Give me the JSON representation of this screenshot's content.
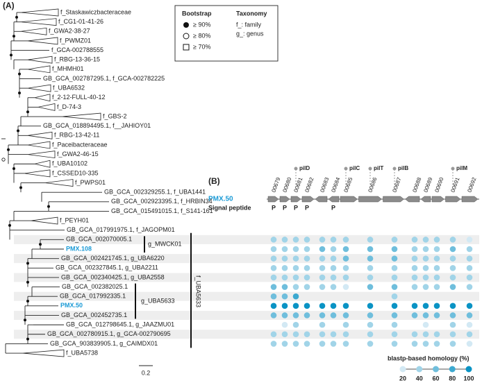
{
  "panel_a": {
    "label": "(A)",
    "taxa": [
      {
        "label": "f_Staskawiczbacteraceae",
        "collapsed": true
      },
      {
        "label": "f_CG1-01-41-26",
        "collapsed": true
      },
      {
        "label": "f_GWA2-38-27",
        "collapsed": true
      },
      {
        "label": "f_PWMZ01",
        "collapsed": true
      },
      {
        "label": "f_GCA-002788555",
        "collapsed": false
      },
      {
        "label": "f_RBG-13-36-15",
        "collapsed": true
      },
      {
        "label": "f_MHMH01",
        "collapsed": true
      },
      {
        "label": "GB_GCA_002787295.1, f_GCA-002782225",
        "collapsed": false
      },
      {
        "label": "f_UBA6532",
        "collapsed": true
      },
      {
        "label": "f_2-12-FULL-40-12",
        "collapsed": true
      },
      {
        "label": "f_D-74-3",
        "collapsed": true
      },
      {
        "label": "f_GBS-2",
        "collapsed": true
      },
      {
        "label": "GB_GCA_018894495.1, f__JAHIOY01",
        "collapsed": false
      },
      {
        "label": "f_RBG-13-42-11",
        "collapsed": true
      },
      {
        "label": "f_Paceibacteraceae",
        "collapsed": true
      },
      {
        "label": "f_GWA2-46-15",
        "collapsed": true
      },
      {
        "label": "f_UBA10102",
        "collapsed": true
      },
      {
        "label": "f_CSSED10-335",
        "collapsed": true
      },
      {
        "label": "f_PWPS01",
        "collapsed": true
      },
      {
        "label": "GB_GCA_002329255.1, f_UBA1441",
        "collapsed": false
      },
      {
        "label": "GB_GCA_002923395.1, f_HRBIN34",
        "collapsed": false
      },
      {
        "label": "GB_GCA_015491015.1, f_S141-161",
        "collapsed": false
      },
      {
        "label": "f_PEYH01",
        "collapsed": true
      },
      {
        "label": "GB_GCA_017991975.1, f_JAGOPM01",
        "collapsed": false
      },
      {
        "label": "GB_GCA_002070005.1",
        "collapsed": false
      },
      {
        "label": "PMX.108",
        "collapsed": false,
        "highlight": true
      },
      {
        "label": "GB_GCA_002421745.1, g_UBA6220",
        "collapsed": false
      },
      {
        "label": "GB_GCA_002327845.1, g_UBA2211",
        "collapsed": false
      },
      {
        "label": "GB_GCA_002340425.1, g_UBA2558",
        "collapsed": false
      },
      {
        "label": "GB_GCA_002382025.1",
        "collapsed": false
      },
      {
        "label": "GB_GCA_017992335.1",
        "collapsed": false
      },
      {
        "label": "PMX.50",
        "collapsed": false,
        "highlight": true
      },
      {
        "label": "GB_GCA_002452735.1",
        "collapsed": false
      },
      {
        "label": "GB_GCA_012798645.1, g_JAAZMU01",
        "collapsed": false
      },
      {
        "label": "GB_GCA_002780915.1, g_GCA-002790695",
        "collapsed": false
      },
      {
        "label": "GB_GCA_903839905.1, g_CAIMDX01",
        "collapsed": false
      },
      {
        "label": "f_UBA5738",
        "collapsed": true
      }
    ],
    "highlight_color": "#1a9ad6",
    "clades": {
      "genus_1": "g_MWCK01",
      "genus_2": "g_UBA5633",
      "family": "f_UBA5633"
    },
    "scale_bar": "0.2",
    "legend": {
      "bootstrap_title": "Bootstrap",
      "bootstrap_items": [
        "≥ 90%",
        "≥ 80%",
        "≥ 70%"
      ],
      "taxonomy_title": "Taxonomy",
      "taxonomy_items": [
        "f_: family",
        "g_: genus"
      ]
    }
  },
  "panel_b": {
    "label": "(B)",
    "genome": "PMX.50",
    "signal_peptide_title": "Signal peptide",
    "genes": [
      {
        "id": "00679",
        "strand": "+",
        "signal_peptide": "P",
        "pil": null
      },
      {
        "id": "00680",
        "strand": "+",
        "signal_peptide": "P",
        "pil": null
      },
      {
        "id": "00681",
        "strand": "+",
        "signal_peptide": "P",
        "pil": "pilD"
      },
      {
        "id": "00682",
        "strand": "+",
        "signal_peptide": "P",
        "pil": null
      },
      {
        "id": "00683",
        "strand": "-",
        "signal_peptide": null,
        "pil": null
      },
      {
        "id": "00684",
        "strand": "-",
        "signal_peptide": "P",
        "pil": null
      },
      {
        "id": "00685",
        "strand": "+",
        "signal_peptide": null,
        "pil": "pilC"
      },
      {
        "id": "00686",
        "strand": "+",
        "signal_peptide": null,
        "pil": "pilT"
      },
      {
        "id": "00687",
        "strand": "+",
        "signal_peptide": null,
        "pil": "pilB"
      },
      {
        "id": "00688",
        "strand": "-",
        "signal_peptide": null,
        "pil": null
      },
      {
        "id": "00689",
        "strand": "-",
        "signal_peptide": null,
        "pil": null
      },
      {
        "id": "00690",
        "strand": "+",
        "signal_peptide": null,
        "pil": null
      },
      {
        "id": "00691",
        "strand": "+",
        "signal_peptide": null,
        "pil": "pilM"
      },
      {
        "id": "00692",
        "strand": "+",
        "signal_peptide": null,
        "pil": null
      }
    ],
    "homology": [
      [
        40,
        40,
        40,
        40,
        40,
        40,
        40,
        40,
        40,
        40,
        40,
        40,
        40,
        20
      ],
      [
        40,
        40,
        40,
        40,
        60,
        40,
        60,
        60,
        60,
        40,
        40,
        40,
        60,
        40
      ],
      [
        40,
        40,
        40,
        40,
        40,
        40,
        60,
        60,
        60,
        40,
        40,
        40,
        40,
        40
      ],
      [
        40,
        40,
        40,
        40,
        40,
        40,
        40,
        40,
        40,
        40,
        40,
        40,
        40,
        40
      ],
      [
        40,
        40,
        40,
        40,
        40,
        40,
        40,
        40,
        40,
        40,
        40,
        40,
        40,
        40
      ],
      [
        60,
        60,
        40,
        40,
        40,
        40,
        20,
        60,
        60,
        40,
        40,
        40,
        60,
        40
      ],
      [
        60,
        60,
        80,
        null,
        null,
        null,
        null,
        null,
        40,
        null,
        null,
        null,
        null,
        null
      ],
      [
        100,
        100,
        100,
        100,
        100,
        100,
        100,
        100,
        100,
        100,
        100,
        100,
        100,
        100
      ],
      [
        60,
        60,
        60,
        60,
        60,
        60,
        60,
        60,
        60,
        60,
        60,
        60,
        60,
        60
      ],
      [
        null,
        20,
        40,
        null,
        40,
        null,
        40,
        40,
        40,
        null,
        20,
        null,
        40,
        20
      ],
      [
        40,
        40,
        40,
        40,
        40,
        40,
        40,
        40,
        40,
        40,
        40,
        40,
        40,
        40
      ],
      [
        40,
        40,
        40,
        40,
        40,
        40,
        40,
        40,
        40,
        40,
        40,
        40,
        40,
        20
      ]
    ],
    "homology_title": "blastp-based homology (%)",
    "homology_lim": [
      20,
      100
    ],
    "homology_ticks": [
      20,
      40,
      60,
      80,
      100
    ],
    "color_range": [
      "#d3e9f4",
      "#0a93c4"
    ]
  }
}
